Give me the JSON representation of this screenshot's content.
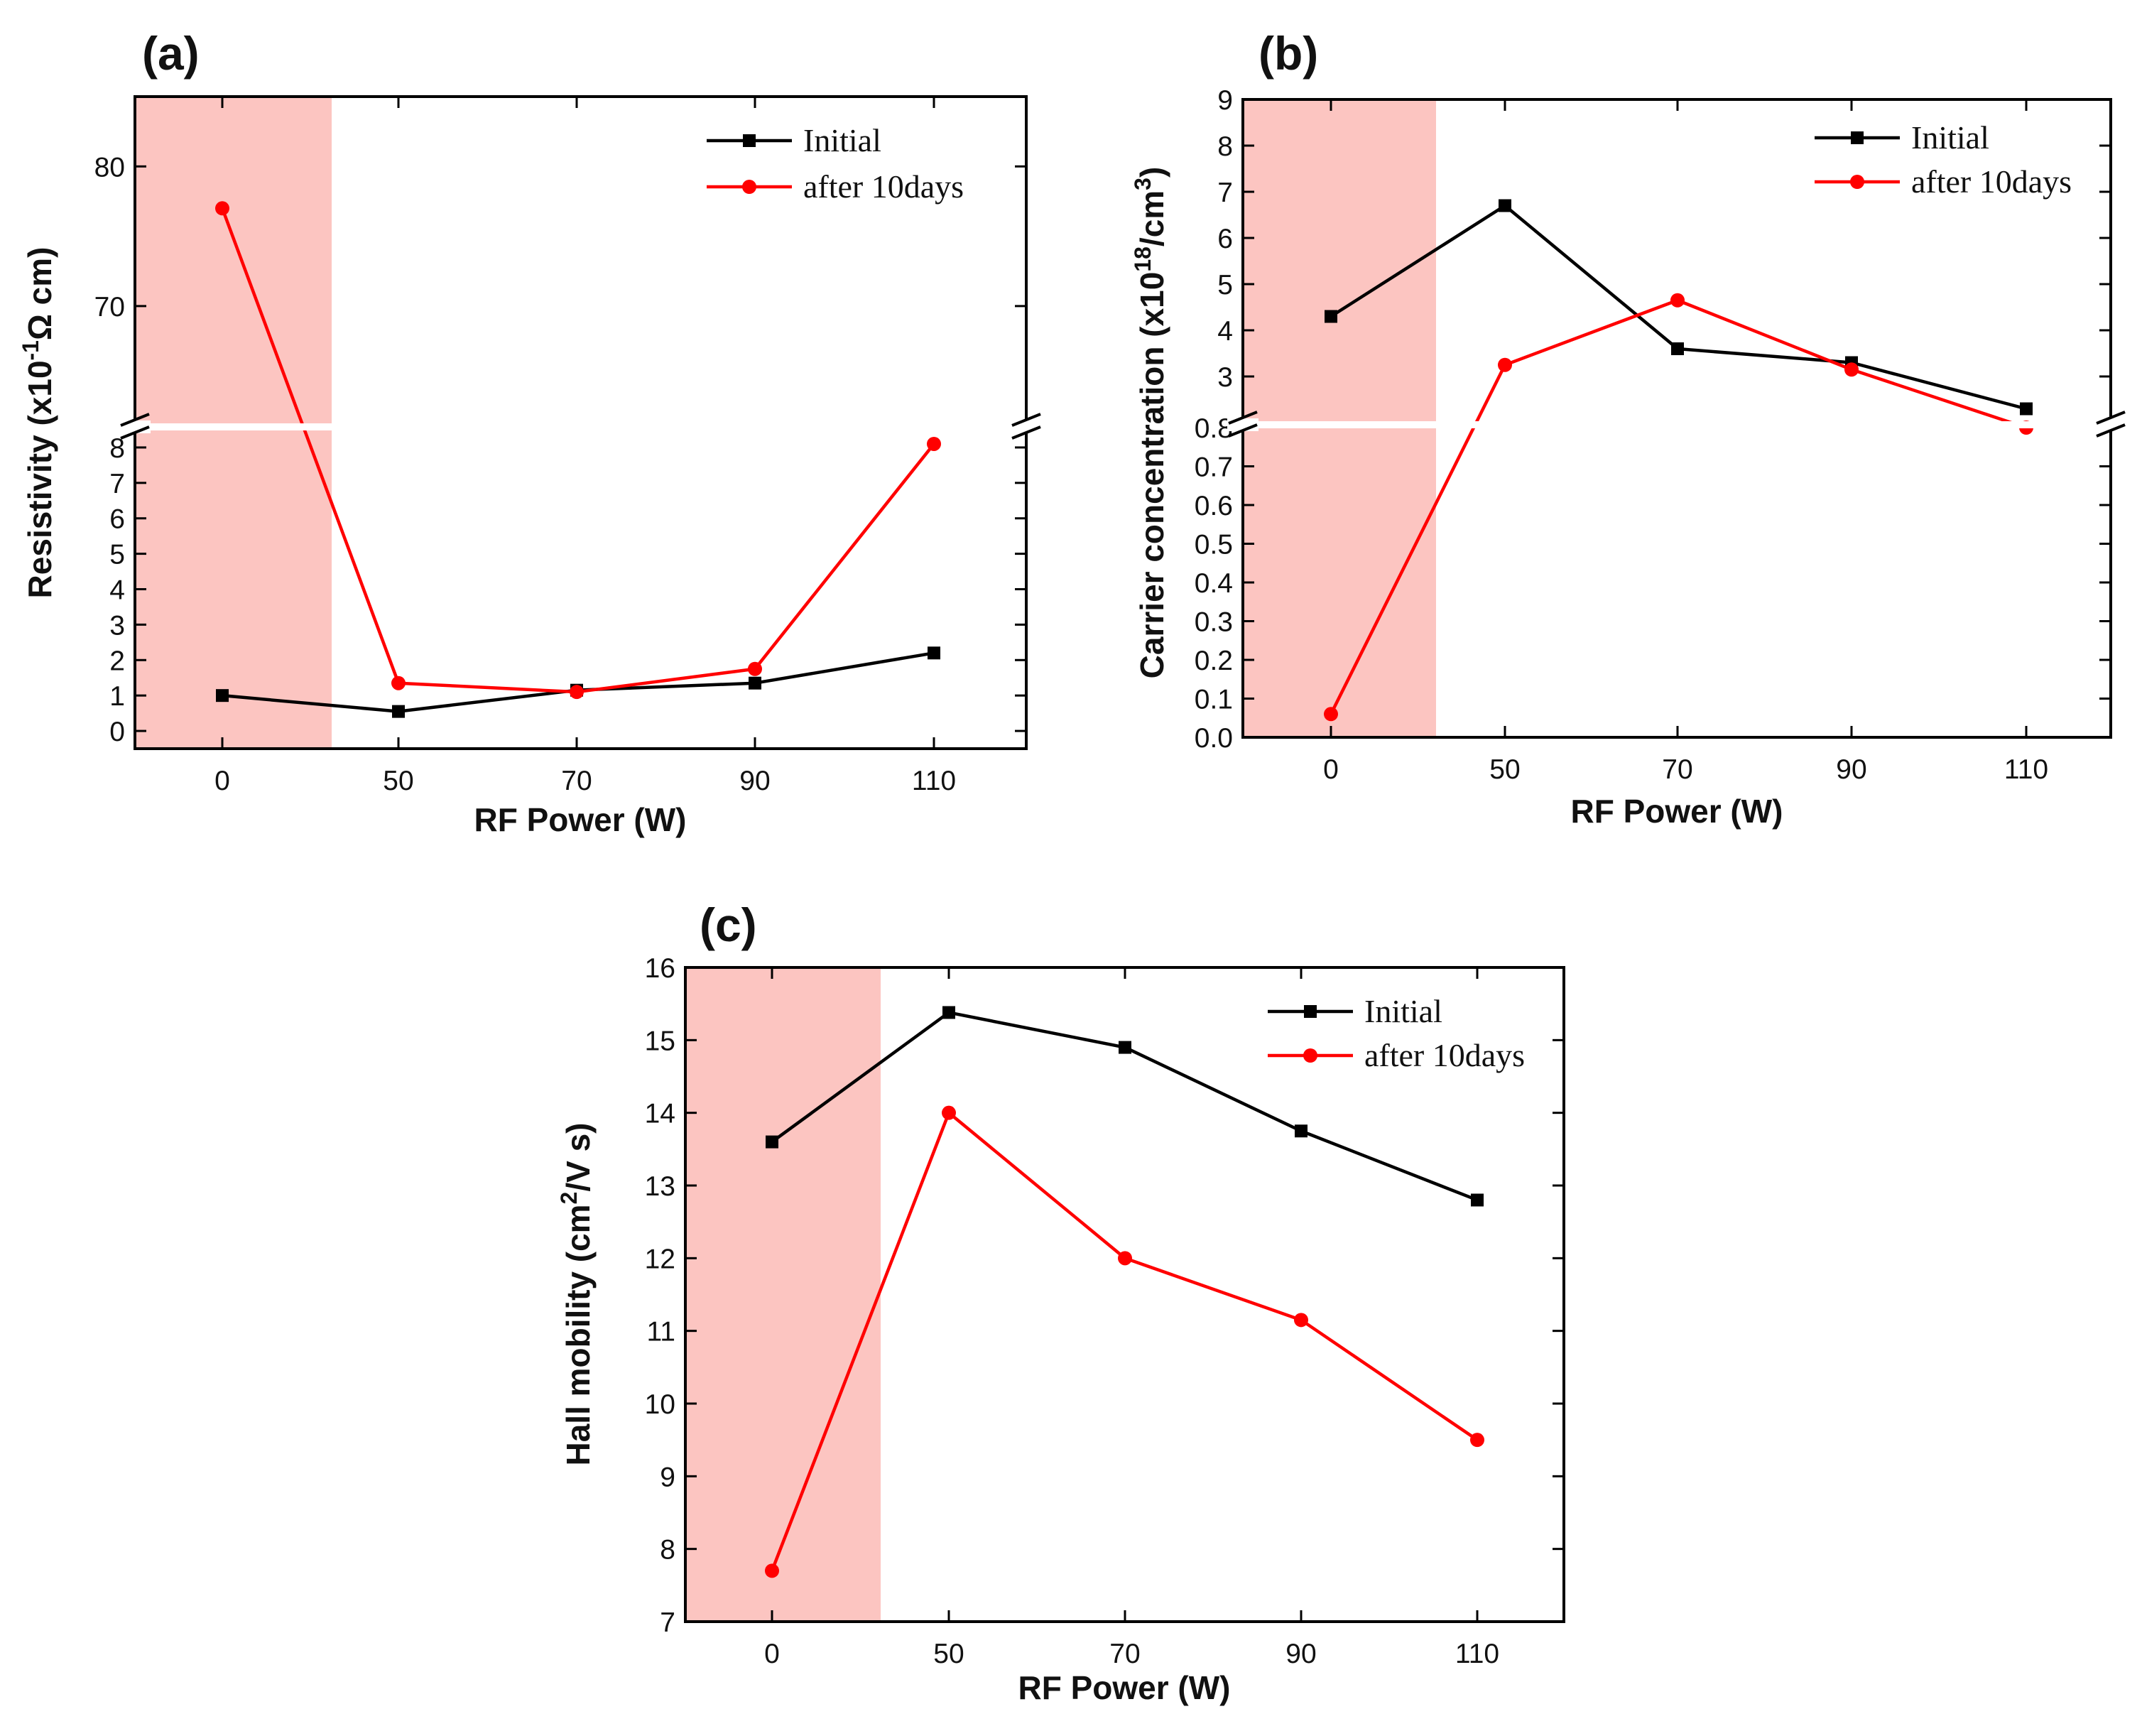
{
  "colors": {
    "initial": "#000000",
    "after": "#ff0000",
    "shade": "#fcc5c1"
  },
  "chart_data": [
    {
      "panel": "(a)",
      "type": "line",
      "x": [
        "0",
        "50",
        "70",
        "90",
        "110"
      ],
      "xlabel": "RF Power (W)",
      "ylabel": "Resistivity (x10-1Ω cm)",
      "ylabel_parts": {
        "pre": "Resistivity (x10",
        "sup": "-1",
        "post": "Ω cm)"
      },
      "axis_break": true,
      "lower_ylim": [
        -0.5,
        8.5
      ],
      "upper_ylim": [
        61.5,
        85
      ],
      "lower_ticks": [
        "0",
        "1",
        "2",
        "3",
        "4",
        "5",
        "6",
        "7",
        "8"
      ],
      "upper_ticks": [
        "70",
        "80"
      ],
      "shaded_region": "0",
      "legend_position": "top-right",
      "series": [
        {
          "name": "Initial",
          "marker": "square",
          "values": [
            1.0,
            0.55,
            1.15,
            1.35,
            2.2
          ]
        },
        {
          "name": "after 10days",
          "marker": "circle",
          "values": [
            77.0,
            1.35,
            1.1,
            1.75,
            8.1
          ]
        }
      ]
    },
    {
      "panel": "(b)",
      "type": "line",
      "x": [
        "0",
        "50",
        "70",
        "90",
        "110"
      ],
      "xlabel": "RF Power (W)",
      "ylabel": "Carrier concentration (x1018/cm3)",
      "ylabel_parts": {
        "pre": "Carrier concentration (x10",
        "sup": "18",
        "mid": "/cm",
        "sup2": "3",
        "post": ")"
      },
      "axis_break": true,
      "lower_ylim": [
        0,
        0.8
      ],
      "upper_ylim": [
        2.0,
        9.0
      ],
      "lower_ticks": [
        "0.0",
        "0.1",
        "0.2",
        "0.3",
        "0.4",
        "0.5",
        "0.6",
        "0.7",
        "0.8"
      ],
      "upper_ticks": [
        "3",
        "4",
        "5",
        "6",
        "7",
        "8",
        "9"
      ],
      "shaded_region": "0",
      "legend_position": "top-right",
      "series": [
        {
          "name": "Initial",
          "marker": "square",
          "values": [
            4.3,
            6.7,
            3.6,
            3.3,
            2.3
          ]
        },
        {
          "name": "after 10days",
          "marker": "circle",
          "values": [
            0.06,
            3.25,
            4.65,
            3.15,
            0.8
          ]
        }
      ]
    },
    {
      "panel": "(c)",
      "type": "line",
      "x": [
        "0",
        "50",
        "70",
        "90",
        "110"
      ],
      "xlabel": "RF Power (W)",
      "ylabel": "Hall mobility (cm2/V s)",
      "ylabel_parts": {
        "pre": "Hall mobility (cm",
        "sup": "2",
        "post": "/V s)"
      },
      "ylim": [
        7,
        16
      ],
      "yticks": [
        "7",
        "8",
        "9",
        "10",
        "11",
        "12",
        "13",
        "14",
        "15",
        "16"
      ],
      "shaded_region": "0",
      "legend_position": "top-right",
      "series": [
        {
          "name": "Initial",
          "marker": "square",
          "values": [
            13.6,
            15.38,
            14.9,
            13.75,
            12.8
          ]
        },
        {
          "name": "after 10days",
          "marker": "circle",
          "values": [
            7.7,
            14.0,
            12.0,
            11.15,
            9.5
          ]
        }
      ]
    }
  ]
}
